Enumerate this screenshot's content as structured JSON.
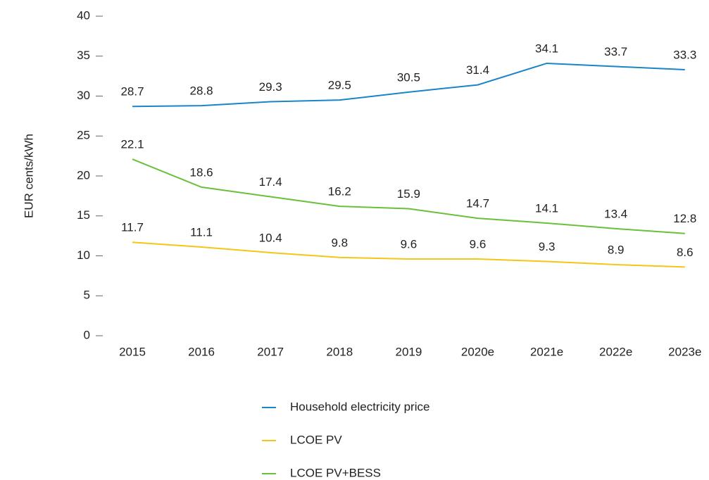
{
  "chart_data": {
    "type": "line",
    "y_label": "EUR cents/kWh",
    "categories": [
      "2015",
      "2016",
      "2017",
      "2018",
      "2019",
      "2020e",
      "2021e",
      "2022e",
      "2023e"
    ],
    "series": [
      {
        "name": "Household electricity price",
        "color": "#1a85c8",
        "values": [
          28.7,
          28.8,
          29.3,
          29.5,
          30.5,
          31.4,
          34.1,
          33.7,
          33.3
        ]
      },
      {
        "name": "LCOE PV",
        "color": "#f5c518",
        "values": [
          11.7,
          11.1,
          10.4,
          9.8,
          9.6,
          9.6,
          9.3,
          8.9,
          8.6
        ]
      },
      {
        "name": "LCOE PV+BESS",
        "color": "#6abf3b",
        "values": [
          22.1,
          18.6,
          17.4,
          16.2,
          15.9,
          14.7,
          14.1,
          13.4,
          12.8
        ]
      }
    ],
    "ylim": [
      0,
      40
    ],
    "yticks": [
      0,
      5,
      10,
      15,
      20,
      25,
      30,
      35,
      40
    ],
    "legend": "bottom"
  }
}
